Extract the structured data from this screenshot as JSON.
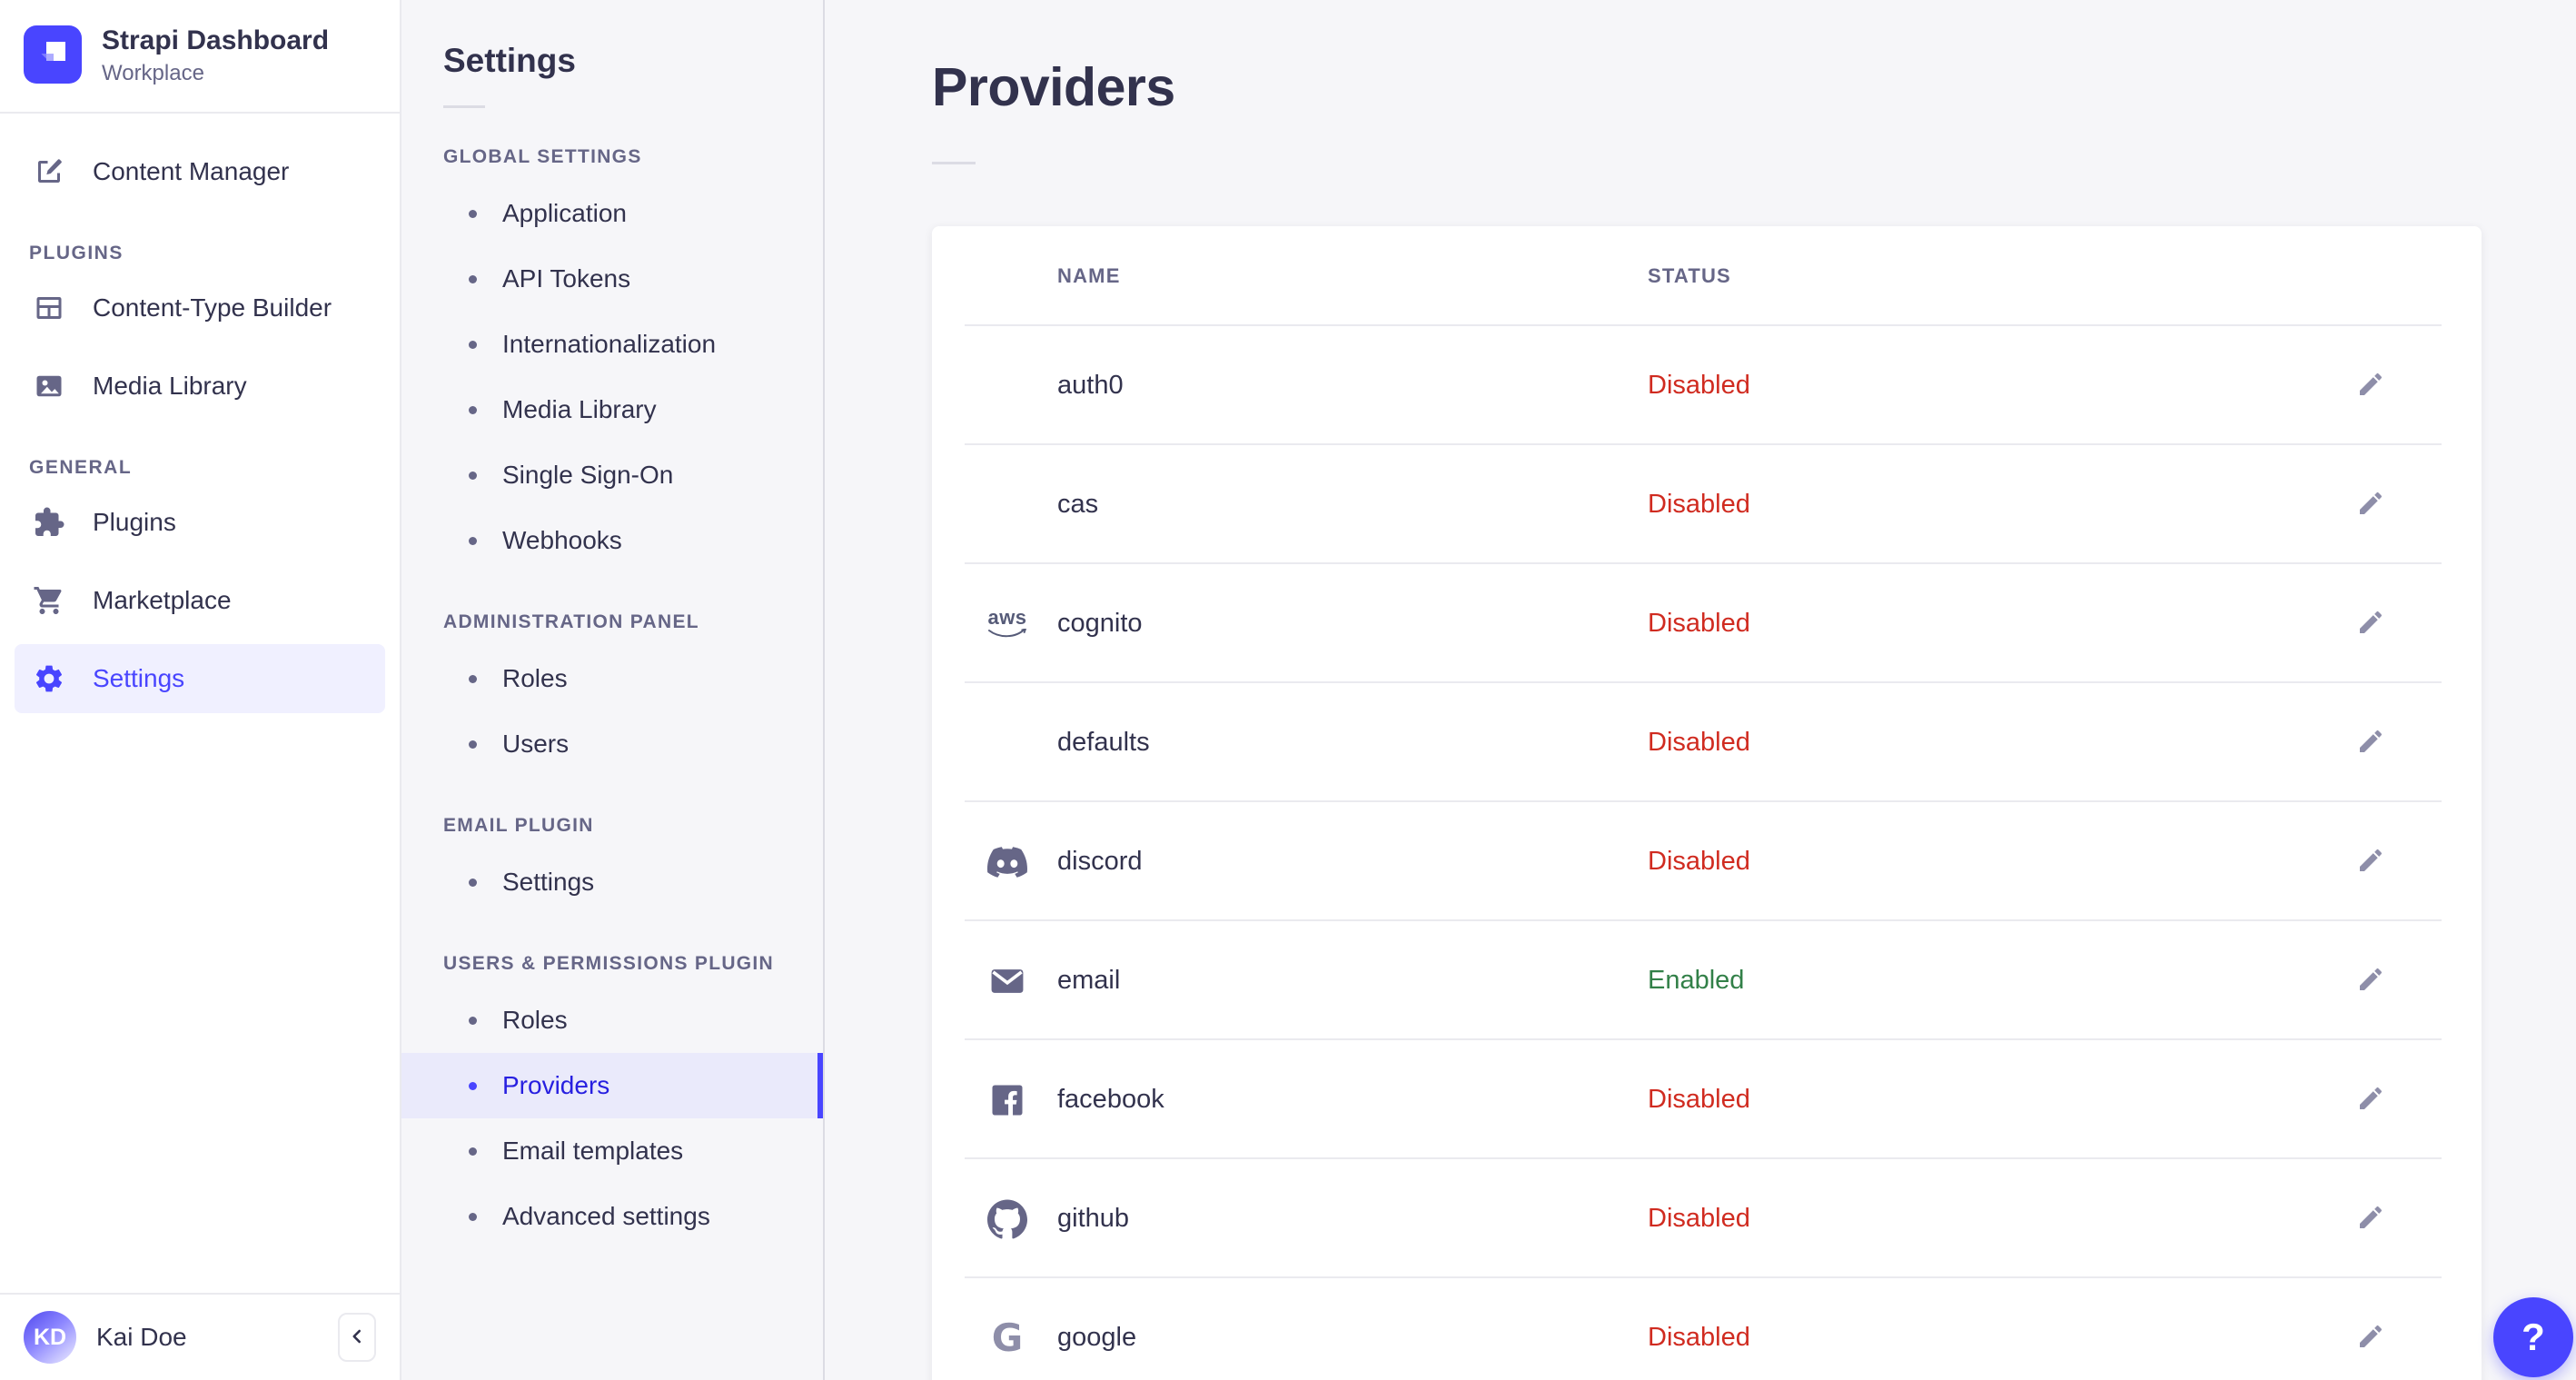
{
  "colors": {
    "accent": "#4945ff",
    "accent_text_active": "#271fe0",
    "accent_bg_active": "#f0f0ff",
    "subnav_active_bg": "#eaeafb",
    "danger": "#d02b20",
    "success": "#328048",
    "heading": "#32324d",
    "muted": "#666687"
  },
  "brand": {
    "name": "Strapi Dashboard",
    "workspace": "Workplace",
    "logo_icon": "strapi-logo-icon"
  },
  "sidebar": {
    "sections": [
      {
        "label": "",
        "items": [
          {
            "label": "Content Manager",
            "icon": "content-manager"
          }
        ]
      },
      {
        "label": "PLUGINS",
        "items": [
          {
            "label": "Content-Type Builder",
            "icon": "content-type-builder"
          },
          {
            "label": "Media Library",
            "icon": "media-library"
          }
        ]
      },
      {
        "label": "GENERAL",
        "items": [
          {
            "label": "Plugins",
            "icon": "puzzle"
          },
          {
            "label": "Marketplace",
            "icon": "cart"
          },
          {
            "label": "Settings",
            "icon": "gear",
            "active": true
          }
        ]
      }
    ],
    "user": {
      "name": "Kai Doe",
      "initials": "KD"
    },
    "collapse_icon": "chevron-left-icon"
  },
  "subnav": {
    "title": "Settings",
    "sections": [
      {
        "label": "GLOBAL SETTINGS",
        "items": [
          {
            "label": "Application"
          },
          {
            "label": "API Tokens"
          },
          {
            "label": "Internationalization"
          },
          {
            "label": "Media Library"
          },
          {
            "label": "Single Sign-On"
          },
          {
            "label": "Webhooks"
          }
        ]
      },
      {
        "label": "ADMINISTRATION PANEL",
        "items": [
          {
            "label": "Roles"
          },
          {
            "label": "Users"
          }
        ]
      },
      {
        "label": "EMAIL PLUGIN",
        "items": [
          {
            "label": "Settings"
          }
        ]
      },
      {
        "label": "USERS & PERMISSIONS PLUGIN",
        "items": [
          {
            "label": "Roles"
          },
          {
            "label": "Providers",
            "active": true
          },
          {
            "label": "Email templates"
          },
          {
            "label": "Advanced settings"
          }
        ]
      }
    ]
  },
  "main": {
    "title": "Providers",
    "table": {
      "columns": [
        "NAME",
        "STATUS"
      ],
      "rows": [
        {
          "name": "auth0",
          "icon": null,
          "status": "Disabled"
        },
        {
          "name": "cas",
          "icon": null,
          "status": "Disabled"
        },
        {
          "name": "cognito",
          "icon": "aws-logo",
          "status": "Disabled"
        },
        {
          "name": "defaults",
          "icon": null,
          "status": "Disabled"
        },
        {
          "name": "discord",
          "icon": "discord-logo",
          "status": "Disabled"
        },
        {
          "name": "email",
          "icon": "envelope",
          "status": "Enabled"
        },
        {
          "name": "facebook",
          "icon": "facebook-logo",
          "status": "Disabled"
        },
        {
          "name": "github",
          "icon": "github-logo",
          "status": "Disabled"
        },
        {
          "name": "google",
          "icon": "google-logo",
          "status": "Disabled"
        }
      ],
      "edit_action_icon": "pencil-icon"
    }
  },
  "help": {
    "label": "?"
  }
}
